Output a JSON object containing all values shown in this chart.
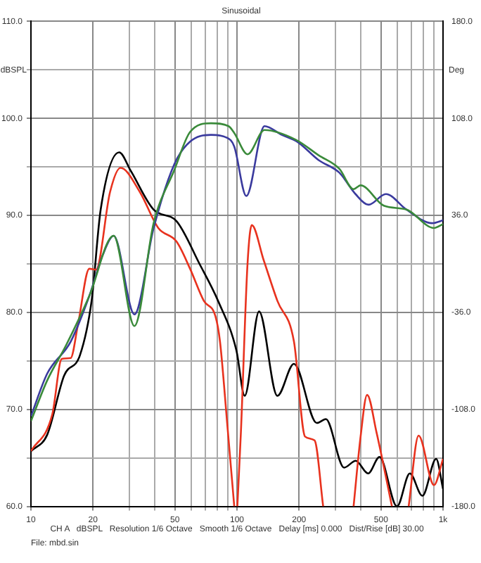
{
  "chart_data": {
    "type": "line",
    "title": "Sinusoidal",
    "ylabel": "dBSPL",
    "y2label": "Deg",
    "annotations": [
      "CH A   dBSPL   Resolution 1/6 Octave   Smooth 1/6 Octave   Delay [ms] 0.000   Dist/Rise [dB] 30.00",
      "File: mbd.sin"
    ],
    "log": "x",
    "grid": true,
    "marker": "none",
    "line_style": "solid",
    "xlim": [
      10,
      1000
    ],
    "xticks": [
      10,
      20,
      {
        "value": 30,
        "label": null
      },
      {
        "value": 40,
        "label": null
      },
      50,
      {
        "value": 60,
        "label": null
      },
      {
        "value": 70,
        "label": null
      },
      {
        "value": 80,
        "label": null
      },
      {
        "value": 90,
        "label": null
      },
      100,
      200,
      {
        "value": 300,
        "label": null
      },
      {
        "value": 400,
        "label": null
      },
      500,
      {
        "value": 600,
        "label": null
      },
      {
        "value": 700,
        "label": null
      },
      {
        "value": 800,
        "label": null
      },
      {
        "value": 900,
        "label": null
      },
      {
        "value": 1000,
        "label": "1k"
      }
    ],
    "ylim": [
      60,
      110
    ],
    "yticks": [
      {
        "value": 60,
        "label": "60.0"
      },
      {
        "value": 65,
        "label": null
      },
      {
        "value": 70,
        "label": "70.0"
      },
      {
        "value": 75,
        "label": null
      },
      {
        "value": 80,
        "label": "80.0"
      },
      {
        "value": 85,
        "label": null
      },
      {
        "value": 90,
        "label": "90.0"
      },
      {
        "value": 95,
        "label": null
      },
      {
        "value": 100,
        "label": "100.0"
      },
      {
        "value": 105,
        "label": null
      },
      {
        "value": 110,
        "label": "110.0"
      }
    ],
    "y2lim": [
      -180,
      180
    ],
    "y2ticks": [
      {
        "value": -180,
        "label": "-180.0"
      },
      {
        "value": -108,
        "label": "-108.0"
      },
      {
        "value": -36,
        "label": "-36.0"
      },
      {
        "value": 36,
        "label": "36.0"
      },
      {
        "value": 108,
        "label": "108.0"
      },
      {
        "value": 180,
        "label": "180.0"
      }
    ],
    "series": [
      {
        "color": "#3a8a3a",
        "x": [
          10,
          12,
          14.8,
          19.2,
          25.2,
          31.8,
          39.4,
          49.7,
          59.2,
          74.8,
          91,
          97,
          112.5,
          136,
          193,
          249,
          314,
          368,
          398,
          516,
          665,
          904,
          1000
        ],
        "values": [
          68.8,
          73,
          76.6,
          81.7,
          87.9,
          78.6,
          89.2,
          94.7,
          98.6,
          99.5,
          99.2,
          98.5,
          96.3,
          98.8,
          97.8,
          96.2,
          94.8,
          92.7,
          93.1,
          91,
          90.6,
          88.7,
          89.1
        ]
      },
      {
        "color": "#3a3a9e",
        "x": [
          10,
          12,
          15.6,
          19.2,
          22.3,
          25.2,
          31.8,
          39.4,
          49.7,
          59.2,
          74.8,
          89.6,
          97,
          111,
          136,
          165,
          196,
          249,
          314,
          376,
          435,
          528,
          665,
          885,
          1000
        ],
        "values": [
          69.3,
          73.7,
          77,
          81.7,
          85.9,
          87.9,
          79.8,
          88.7,
          95.3,
          97.6,
          98.3,
          98,
          97.1,
          92,
          99.2,
          98.3,
          97.6,
          95.7,
          94.4,
          92.2,
          91.1,
          92.2,
          90.6,
          89.2,
          89.5
        ]
      },
      {
        "color": "#e8321e",
        "x": [
          10,
          12.7,
          14.1,
          15.6,
          16.9,
          19.2,
          20.7,
          24.2,
          27.2,
          33.8,
          41.5,
          50.9,
          59.2,
          69,
          78.6,
          82.7,
          89.6,
          97,
          98.5,
          100.4,
          104.5,
          112.5,
          118,
          134.7,
          157,
          189,
          214,
          238,
          262,
          300,
          368,
          398,
          428,
          476,
          565,
          620,
          681,
          761,
          904,
          1000
        ],
        "values": [
          65.7,
          69.5,
          75.2,
          75.3,
          78.7,
          84.5,
          84.4,
          92.4,
          94.9,
          92.4,
          88.7,
          87.3,
          84.5,
          81.2,
          79.6,
          77,
          68.6,
          60,
          null,
          60,
          67.7,
          85,
          89,
          85.4,
          81.2,
          77,
          67.2,
          66.8,
          60,
          null,
          60,
          67.2,
          71.5,
          67.6,
          60,
          null,
          60,
          67.3,
          62.2,
          64.9
        ]
      },
      {
        "color": "#000000",
        "x": [
          10,
          12,
          14.5,
          17.3,
          19.7,
          21.8,
          26.8,
          30.5,
          39.4,
          50.9,
          65.8,
          80.9,
          99.3,
          109,
          128,
          157,
          189,
          244,
          270,
          331,
          377,
          433,
          492,
          598,
          690,
          794,
          926,
          1000
        ],
        "values": [
          65.7,
          67.4,
          73.5,
          75.6,
          81.2,
          90.6,
          96.5,
          94.6,
          90.6,
          89.4,
          85,
          81.2,
          76.1,
          71.4,
          80.1,
          71.4,
          74.7,
          68.6,
          69,
          64,
          64.7,
          63.4,
          65.1,
          60,
          63.4,
          61.1,
          64.9,
          61.8
        ]
      }
    ]
  }
}
